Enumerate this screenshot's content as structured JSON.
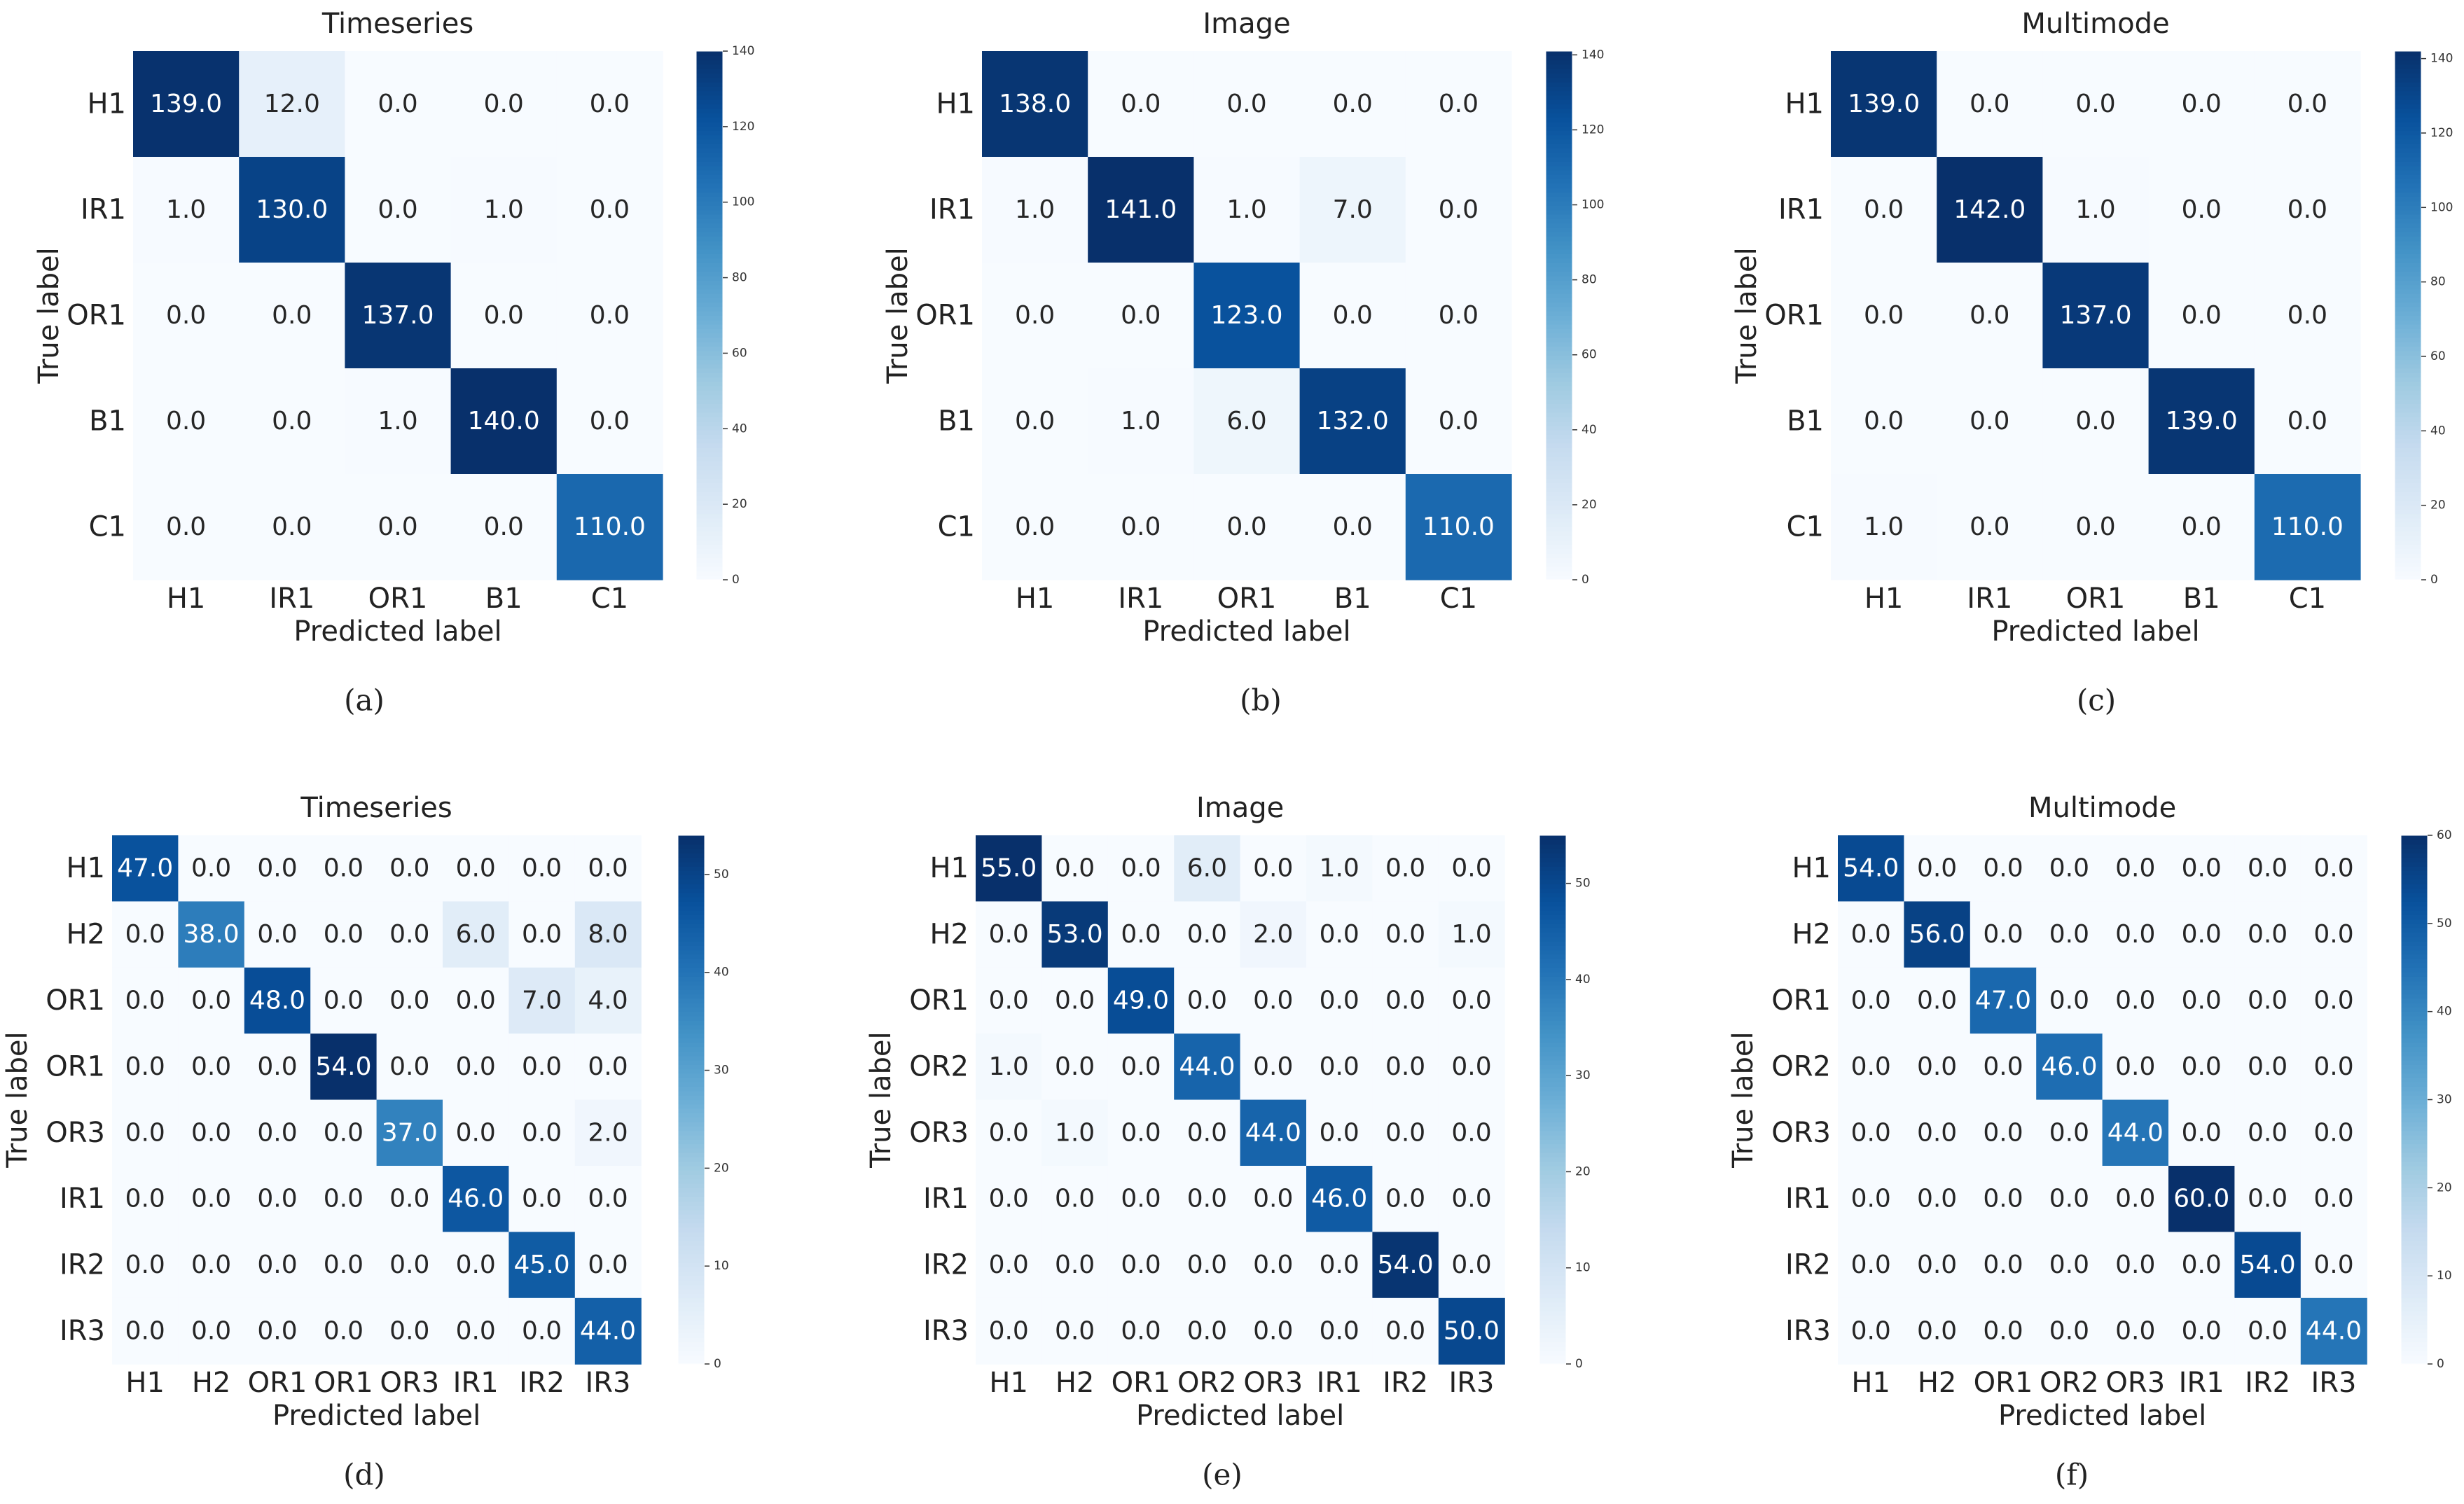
{
  "figure": {
    "colormap": [
      "#f7fbff",
      "#deebf7",
      "#c6dbef",
      "#9ecae1",
      "#6baed6",
      "#4292c6",
      "#2171b5",
      "#08519c",
      "#08306b"
    ]
  },
  "chart_data": [
    {
      "type": "heatmap",
      "title": "Timeseries",
      "caption": "(a)",
      "xlabel": "Predicted label",
      "ylabel": "True label",
      "x_categories": [
        "H1",
        "IR1",
        "OR1",
        "B1",
        "C1"
      ],
      "y_categories": [
        "H1",
        "IR1",
        "OR1",
        "B1",
        "C1"
      ],
      "values": [
        [
          139,
          12,
          0,
          0,
          0
        ],
        [
          1,
          130,
          0,
          1,
          0
        ],
        [
          0,
          0,
          137,
          0,
          0
        ],
        [
          0,
          0,
          1,
          140,
          0
        ],
        [
          0,
          0,
          0,
          0,
          110
        ]
      ],
      "value_labels": [
        [
          "139.0",
          "12.0",
          "0.0",
          "0.0",
          "0.0"
        ],
        [
          "1.0",
          "130.0",
          "0.0",
          "1.0",
          "0.0"
        ],
        [
          "0.0",
          "0.0",
          "137.0",
          "0.0",
          "0.0"
        ],
        [
          "0.0",
          "0.0",
          "1.0",
          "140.0",
          "0.0"
        ],
        [
          "0.0",
          "0.0",
          "0.0",
          "0.0",
          "110.0"
        ]
      ],
      "colorbar": {
        "range": [
          0,
          140
        ],
        "ticks": [
          0,
          20,
          40,
          60,
          80,
          100,
          120,
          140
        ],
        "tick_labels": [
          "0",
          "20",
          "40",
          "60",
          "80",
          "100",
          "120",
          "140"
        ]
      }
    },
    {
      "type": "heatmap",
      "title": "Image",
      "caption": "(b)",
      "xlabel": "Predicted label",
      "ylabel": "True label",
      "x_categories": [
        "H1",
        "IR1",
        "OR1",
        "B1",
        "C1"
      ],
      "y_categories": [
        "H1",
        "IR1",
        "OR1",
        "B1",
        "C1"
      ],
      "values": [
        [
          138,
          0,
          0,
          0,
          0
        ],
        [
          1,
          141,
          1,
          7,
          0
        ],
        [
          0,
          0,
          123,
          0,
          0
        ],
        [
          0,
          1,
          6,
          132,
          0
        ],
        [
          0,
          0,
          0,
          0,
          110
        ]
      ],
      "value_labels": [
        [
          "138.0",
          "0.0",
          "0.0",
          "0.0",
          "0.0"
        ],
        [
          "1.0",
          "141.0",
          "1.0",
          "7.0",
          "0.0"
        ],
        [
          "0.0",
          "0.0",
          "123.0",
          "0.0",
          "0.0"
        ],
        [
          "0.0",
          "1.0",
          "6.0",
          "132.0",
          "0.0"
        ],
        [
          "0.0",
          "0.0",
          "0.0",
          "0.0",
          "110.0"
        ]
      ],
      "colorbar": {
        "range": [
          0,
          141
        ],
        "ticks": [
          0,
          20,
          40,
          60,
          80,
          100,
          120,
          140
        ],
        "tick_labels": [
          "0",
          "20",
          "40",
          "60",
          "80",
          "100",
          "120",
          "140"
        ]
      }
    },
    {
      "type": "heatmap",
      "title": "Multimode",
      "caption": "(c)",
      "xlabel": "Predicted label",
      "ylabel": "True label",
      "x_categories": [
        "H1",
        "IR1",
        "OR1",
        "B1",
        "C1"
      ],
      "y_categories": [
        "H1",
        "IR1",
        "OR1",
        "B1",
        "C1"
      ],
      "values": [
        [
          139,
          0,
          0,
          0,
          0
        ],
        [
          0,
          142,
          1,
          0,
          0
        ],
        [
          0,
          0,
          137,
          0,
          0
        ],
        [
          0,
          0,
          0,
          139,
          0
        ],
        [
          1,
          0,
          0,
          0,
          110
        ]
      ],
      "value_labels": [
        [
          "139.0",
          "0.0",
          "0.0",
          "0.0",
          "0.0"
        ],
        [
          "0.0",
          "142.0",
          "1.0",
          "0.0",
          "0.0"
        ],
        [
          "0.0",
          "0.0",
          "137.0",
          "0.0",
          "0.0"
        ],
        [
          "0.0",
          "0.0",
          "0.0",
          "139.0",
          "0.0"
        ],
        [
          "1.0",
          "0.0",
          "0.0",
          "0.0",
          "110.0"
        ]
      ],
      "colorbar": {
        "range": [
          0,
          142
        ],
        "ticks": [
          0,
          20,
          40,
          60,
          80,
          100,
          120,
          140
        ],
        "tick_labels": [
          "0",
          "20",
          "40",
          "60",
          "80",
          "100",
          "120",
          "140"
        ]
      }
    },
    {
      "type": "heatmap",
      "title": "Timeseries",
      "caption": "(d)",
      "xlabel": "Predicted label",
      "ylabel": "True label",
      "x_categories": [
        "H1",
        "H2",
        "OR1",
        "OR1",
        "OR3",
        "IR1",
        "IR2",
        "IR3"
      ],
      "y_categories": [
        "H1",
        "H2",
        "OR1",
        "OR1",
        "OR3",
        "IR1",
        "IR2",
        "IR3"
      ],
      "values": [
        [
          47,
          0,
          0,
          0,
          0,
          0,
          0,
          0
        ],
        [
          0,
          38,
          0,
          0,
          0,
          6,
          0,
          8
        ],
        [
          0,
          0,
          48,
          0,
          0,
          0,
          7,
          4
        ],
        [
          0,
          0,
          0,
          54,
          0,
          0,
          0,
          0
        ],
        [
          0,
          0,
          0,
          0,
          37,
          0,
          0,
          2
        ],
        [
          0,
          0,
          0,
          0,
          0,
          46,
          0,
          0
        ],
        [
          0,
          0,
          0,
          0,
          0,
          0,
          45,
          0
        ],
        [
          0,
          0,
          0,
          0,
          0,
          0,
          0,
          44
        ]
      ],
      "value_labels": [
        [
          "47.0",
          "0.0",
          "0.0",
          "0.0",
          "0.0",
          "0.0",
          "0.0",
          "0.0"
        ],
        [
          "0.0",
          "38.0",
          "0.0",
          "0.0",
          "0.0",
          "6.0",
          "0.0",
          "8.0"
        ],
        [
          "0.0",
          "0.0",
          "48.0",
          "0.0",
          "0.0",
          "0.0",
          "7.0",
          "4.0"
        ],
        [
          "0.0",
          "0.0",
          "0.0",
          "54.0",
          "0.0",
          "0.0",
          "0.0",
          "0.0"
        ],
        [
          "0.0",
          "0.0",
          "0.0",
          "0.0",
          "37.0",
          "0.0",
          "0.0",
          "2.0"
        ],
        [
          "0.0",
          "0.0",
          "0.0",
          "0.0",
          "0.0",
          "46.0",
          "0.0",
          "0.0"
        ],
        [
          "0.0",
          "0.0",
          "0.0",
          "0.0",
          "0.0",
          "0.0",
          "45.0",
          "0.0"
        ],
        [
          "0.0",
          "0.0",
          "0.0",
          "0.0",
          "0.0",
          "0.0",
          "0.0",
          "44.0"
        ]
      ],
      "colorbar": {
        "range": [
          0,
          54
        ],
        "ticks": [
          0,
          10,
          20,
          30,
          40,
          50
        ],
        "tick_labels": [
          "0",
          "10",
          "20",
          "30",
          "40",
          "50"
        ]
      }
    },
    {
      "type": "heatmap",
      "title": "Image",
      "caption": "(e)",
      "xlabel": "Predicted label",
      "ylabel": "True label",
      "x_categories": [
        "H1",
        "H2",
        "OR1",
        "OR2",
        "OR3",
        "IR1",
        "IR2",
        "IR3"
      ],
      "y_categories": [
        "H1",
        "H2",
        "OR1",
        "OR2",
        "OR3",
        "IR1",
        "IR2",
        "IR3"
      ],
      "values": [
        [
          55,
          0,
          0,
          6,
          0,
          1,
          0,
          0
        ],
        [
          0,
          53,
          0,
          0,
          2,
          0,
          0,
          1
        ],
        [
          0,
          0,
          49,
          0,
          0,
          0,
          0,
          0
        ],
        [
          1,
          0,
          0,
          44,
          0,
          0,
          0,
          0
        ],
        [
          0,
          1,
          0,
          0,
          44,
          0,
          0,
          0
        ],
        [
          0,
          0,
          0,
          0,
          0,
          46,
          0,
          0
        ],
        [
          0,
          0,
          0,
          0,
          0,
          0,
          54,
          0
        ],
        [
          0,
          0,
          0,
          0,
          0,
          0,
          0,
          50
        ]
      ],
      "value_labels": [
        [
          "55.0",
          "0.0",
          "0.0",
          "6.0",
          "0.0",
          "1.0",
          "0.0",
          "0.0"
        ],
        [
          "0.0",
          "53.0",
          "0.0",
          "0.0",
          "2.0",
          "0.0",
          "0.0",
          "1.0"
        ],
        [
          "0.0",
          "0.0",
          "49.0",
          "0.0",
          "0.0",
          "0.0",
          "0.0",
          "0.0"
        ],
        [
          "1.0",
          "0.0",
          "0.0",
          "44.0",
          "0.0",
          "0.0",
          "0.0",
          "0.0"
        ],
        [
          "0.0",
          "1.0",
          "0.0",
          "0.0",
          "44.0",
          "0.0",
          "0.0",
          "0.0"
        ],
        [
          "0.0",
          "0.0",
          "0.0",
          "0.0",
          "0.0",
          "46.0",
          "0.0",
          "0.0"
        ],
        [
          "0.0",
          "0.0",
          "0.0",
          "0.0",
          "0.0",
          "0.0",
          "54.0",
          "0.0"
        ],
        [
          "0.0",
          "0.0",
          "0.0",
          "0.0",
          "0.0",
          "0.0",
          "0.0",
          "50.0"
        ]
      ],
      "colorbar": {
        "range": [
          0,
          55
        ],
        "ticks": [
          0,
          10,
          20,
          30,
          40,
          50
        ],
        "tick_labels": [
          "0",
          "10",
          "20",
          "30",
          "40",
          "50"
        ]
      }
    },
    {
      "type": "heatmap",
      "title": "Multimode",
      "caption": "(f)",
      "xlabel": "Predicted label",
      "ylabel": "True label",
      "x_categories": [
        "H1",
        "H2",
        "OR1",
        "OR2",
        "OR3",
        "IR1",
        "IR2",
        "IR3"
      ],
      "y_categories": [
        "H1",
        "H2",
        "OR1",
        "OR2",
        "OR3",
        "IR1",
        "IR2",
        "IR3"
      ],
      "values": [
        [
          54,
          0,
          0,
          0,
          0,
          0,
          0,
          0
        ],
        [
          0,
          56,
          0,
          0,
          0,
          0,
          0,
          0
        ],
        [
          0,
          0,
          47,
          0,
          0,
          0,
          0,
          0
        ],
        [
          0,
          0,
          0,
          46,
          0,
          0,
          0,
          0
        ],
        [
          0,
          0,
          0,
          0,
          44,
          0,
          0,
          0
        ],
        [
          0,
          0,
          0,
          0,
          0,
          60,
          0,
          0
        ],
        [
          0,
          0,
          0,
          0,
          0,
          0,
          54,
          0
        ],
        [
          0,
          0,
          0,
          0,
          0,
          0,
          0,
          44
        ]
      ],
      "value_labels": [
        [
          "54.0",
          "0.0",
          "0.0",
          "0.0",
          "0.0",
          "0.0",
          "0.0",
          "0.0"
        ],
        [
          "0.0",
          "56.0",
          "0.0",
          "0.0",
          "0.0",
          "0.0",
          "0.0",
          "0.0"
        ],
        [
          "0.0",
          "0.0",
          "47.0",
          "0.0",
          "0.0",
          "0.0",
          "0.0",
          "0.0"
        ],
        [
          "0.0",
          "0.0",
          "0.0",
          "46.0",
          "0.0",
          "0.0",
          "0.0",
          "0.0"
        ],
        [
          "0.0",
          "0.0",
          "0.0",
          "0.0",
          "44.0",
          "0.0",
          "0.0",
          "0.0"
        ],
        [
          "0.0",
          "0.0",
          "0.0",
          "0.0",
          "0.0",
          "60.0",
          "0.0",
          "0.0"
        ],
        [
          "0.0",
          "0.0",
          "0.0",
          "0.0",
          "0.0",
          "0.0",
          "54.0",
          "0.0"
        ],
        [
          "0.0",
          "0.0",
          "0.0",
          "0.0",
          "0.0",
          "0.0",
          "0.0",
          "44.0"
        ]
      ],
      "colorbar": {
        "range": [
          0,
          60
        ],
        "ticks": [
          0,
          10,
          20,
          30,
          40,
          50,
          60
        ],
        "tick_labels": [
          "0",
          "10",
          "20",
          "30",
          "40",
          "50",
          "60"
        ]
      }
    }
  ]
}
